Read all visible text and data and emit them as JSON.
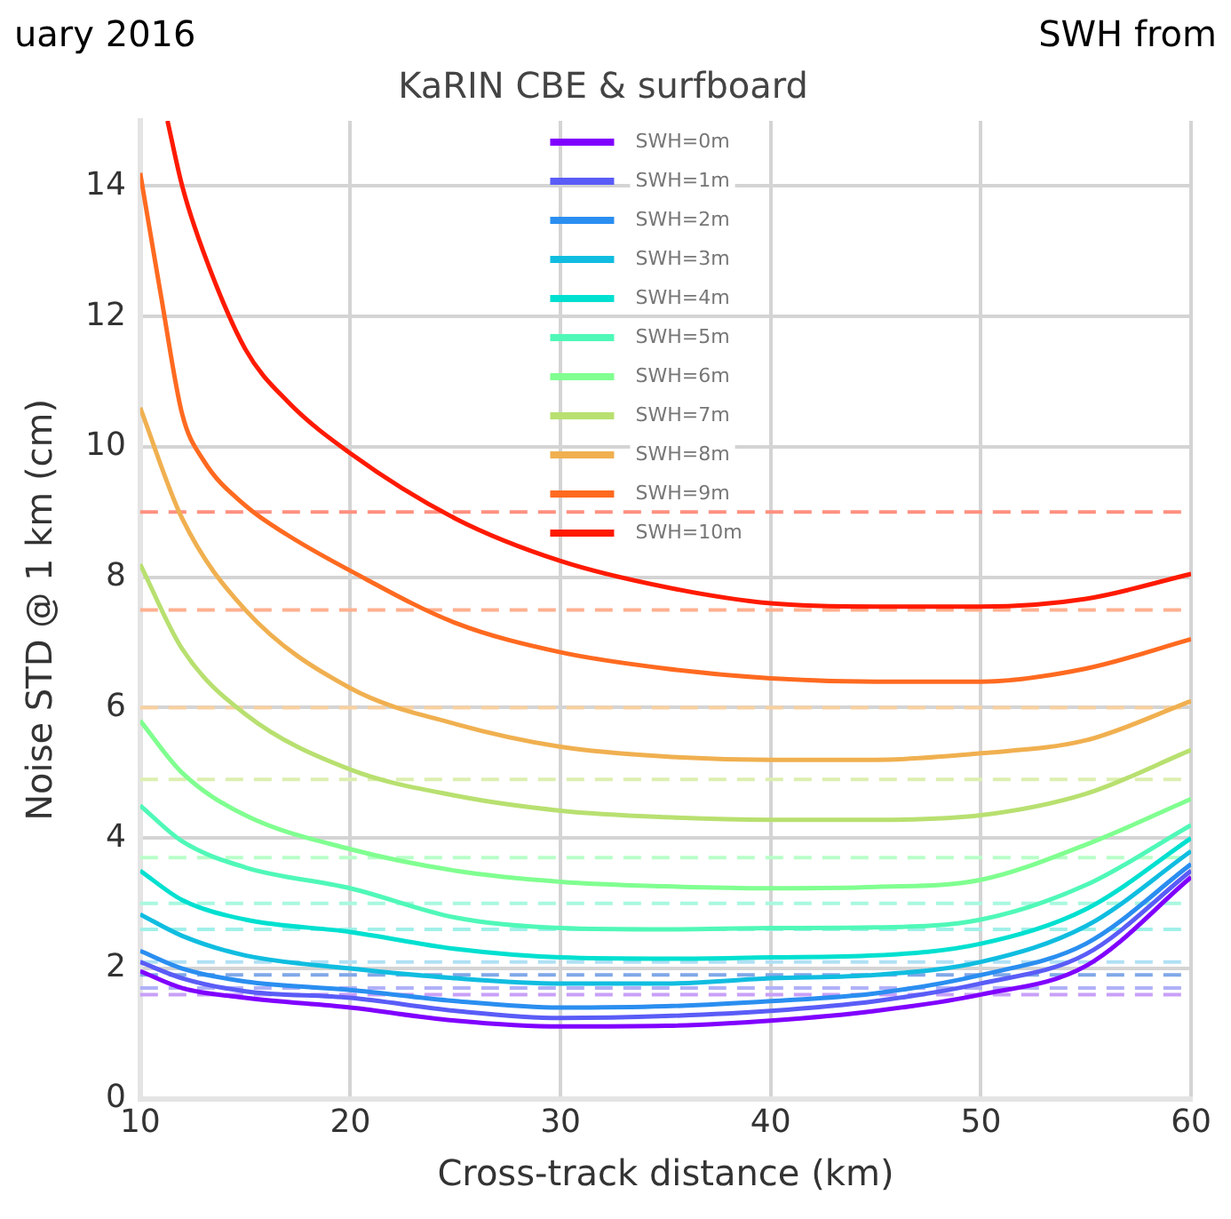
{
  "chart_data": {
    "type": "line",
    "title": "KaRIN CBE & surfboard",
    "xlabel": "Cross-track distance (km)",
    "ylabel": "Noise STD @ 1 km (cm)",
    "annotations": [
      "uary 2016",
      "SWH from"
    ],
    "x": [
      10,
      12,
      15,
      20,
      25,
      30,
      35,
      40,
      45,
      50,
      55,
      60
    ],
    "xlim": [
      10,
      60
    ],
    "xticks": [
      10,
      20,
      30,
      40,
      50,
      60
    ],
    "ylim": [
      0,
      15
    ],
    "yticks": [
      0,
      2,
      4,
      6,
      8,
      10,
      12,
      14
    ],
    "grid": true,
    "legend": "top",
    "marker": "none",
    "line_style": "solid",
    "series": [
      {
        "name": "SWH=0m",
        "color": "#8000ff",
        "values": [
          1.96,
          1.7,
          1.55,
          1.4,
          1.2,
          1.11,
          1.12,
          1.2,
          1.35,
          1.6,
          2.04,
          3.4
        ]
      },
      {
        "name": "SWH=1m",
        "color": "#5a5cf7",
        "values": [
          2.1,
          1.85,
          1.65,
          1.55,
          1.35,
          1.24,
          1.27,
          1.35,
          1.5,
          1.77,
          2.22,
          3.5
        ]
      },
      {
        "name": "SWH=2m",
        "color": "#2a8ef0",
        "values": [
          2.27,
          2.0,
          1.8,
          1.67,
          1.5,
          1.4,
          1.42,
          1.5,
          1.62,
          1.9,
          2.38,
          3.6
        ]
      },
      {
        "name": "SWH=3m",
        "color": "#10bde0",
        "values": [
          2.83,
          2.5,
          2.2,
          2.0,
          1.85,
          1.77,
          1.77,
          1.85,
          1.9,
          2.1,
          2.65,
          3.8
        ]
      },
      {
        "name": "SWH=4m",
        "color": "#00e0d0",
        "values": [
          3.5,
          3.05,
          2.75,
          2.56,
          2.3,
          2.17,
          2.15,
          2.17,
          2.2,
          2.38,
          2.91,
          4.0
        ]
      },
      {
        "name": "SWH=5m",
        "color": "#50f8b8",
        "values": [
          4.5,
          3.95,
          3.55,
          3.23,
          2.78,
          2.62,
          2.6,
          2.62,
          2.63,
          2.75,
          3.28,
          4.2
        ]
      },
      {
        "name": "SWH=6m",
        "color": "#80ff90",
        "values": [
          5.8,
          5.0,
          4.35,
          3.83,
          3.5,
          3.33,
          3.26,
          3.23,
          3.25,
          3.36,
          3.9,
          4.6
        ]
      },
      {
        "name": "SWH=7m",
        "color": "#b8e070",
        "values": [
          8.2,
          6.9,
          5.9,
          5.05,
          4.65,
          4.42,
          4.32,
          4.28,
          4.28,
          4.35,
          4.68,
          5.35
        ]
      },
      {
        "name": "SWH=8m",
        "color": "#f0b050",
        "values": [
          10.6,
          8.9,
          7.5,
          6.3,
          5.75,
          5.4,
          5.25,
          5.2,
          5.2,
          5.3,
          5.5,
          6.1
        ]
      },
      {
        "name": "SWH=9m",
        "color": "#ff6a20",
        "x": [
          10,
          11,
          12,
          13,
          15,
          17,
          20,
          25,
          30,
          35,
          40,
          45,
          50,
          55,
          60
        ],
        "values": [
          14.2,
          12.3,
          10.5,
          9.8,
          9.1,
          8.65,
          8.1,
          7.3,
          6.85,
          6.6,
          6.45,
          6.4,
          6.4,
          6.6,
          7.05
        ]
      },
      {
        "name": "SWH=10m",
        "color": "#ff1a00",
        "x": [
          11.3,
          12,
          13,
          15,
          17,
          20,
          25,
          30,
          35,
          40,
          45,
          50,
          55,
          60
        ],
        "values": [
          15,
          14.0,
          13.0,
          11.5,
          10.7,
          9.9,
          8.9,
          8.25,
          7.85,
          7.6,
          7.55,
          7.55,
          7.67,
          8.05
        ]
      }
    ],
    "ref_lines": [
      {
        "axis": "y",
        "value": 9,
        "color": "#ff9080",
        "line_style": "dashed"
      },
      {
        "axis": "y",
        "value": 7.5,
        "color": "#ffb090",
        "line_style": "dashed"
      },
      {
        "axis": "y",
        "value": 6,
        "color": "#f8d0a0",
        "line_style": "dashed"
      },
      {
        "axis": "y",
        "value": 4.9,
        "color": "#dcefb0",
        "line_style": "dashed"
      },
      {
        "axis": "y",
        "value": 3.7,
        "color": "#b8ffc8",
        "line_style": "dashed"
      },
      {
        "axis": "y",
        "value": 3.0,
        "color": "#a8f8e0",
        "line_style": "dashed"
      },
      {
        "axis": "y",
        "value": 2.6,
        "color": "#a0f0e8",
        "line_style": "dashed"
      },
      {
        "axis": "y",
        "value": 2.1,
        "color": "#b0e0f4",
        "line_style": "dashed"
      },
      {
        "axis": "y",
        "value": 1.9,
        "color": "#80a8e8",
        "line_style": "dashed"
      },
      {
        "axis": "y",
        "value": 1.7,
        "color": "#b0b0f8",
        "line_style": "dashed"
      },
      {
        "axis": "y",
        "value": 1.6,
        "color": "#c8a0f8",
        "line_style": "dashed"
      }
    ]
  }
}
